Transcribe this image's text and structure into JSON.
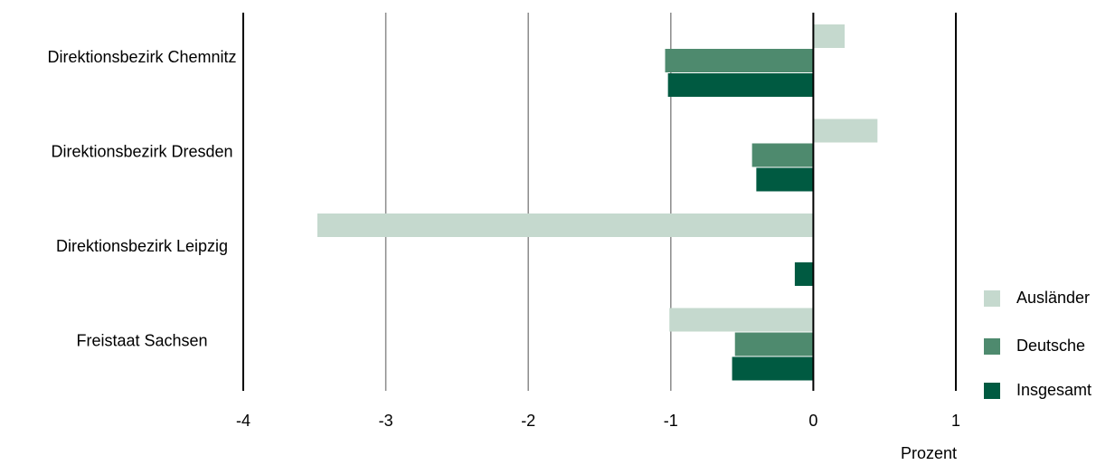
{
  "chart_data": {
    "type": "bar",
    "orientation": "horizontal",
    "categories": [
      "Direktionsbezirk Chemnitz",
      "Direktionsbezirk Dresden",
      "Direktionsbezirk Leipzig",
      "Freistaat Sachsen"
    ],
    "series": [
      {
        "name": "Ausländer",
        "color": "#c5d9ce",
        "values": [
          0.22,
          0.45,
          -3.48,
          -1.01
        ]
      },
      {
        "name": "Deutsche",
        "color": "#4e8a6e",
        "values": [
          -1.04,
          -0.43,
          null,
          -0.55
        ]
      },
      {
        "name": "Insgesamt",
        "color": "#005a41",
        "values": [
          -1.02,
          -0.4,
          -0.13,
          -0.57
        ]
      }
    ],
    "xlim": [
      -4,
      1
    ],
    "x_ticks": [
      "-4",
      "-3",
      "-2",
      "-1",
      "0",
      "1"
    ],
    "xlabel": "Prozent",
    "title": "",
    "grid": "vertical",
    "legend_position": "right"
  }
}
